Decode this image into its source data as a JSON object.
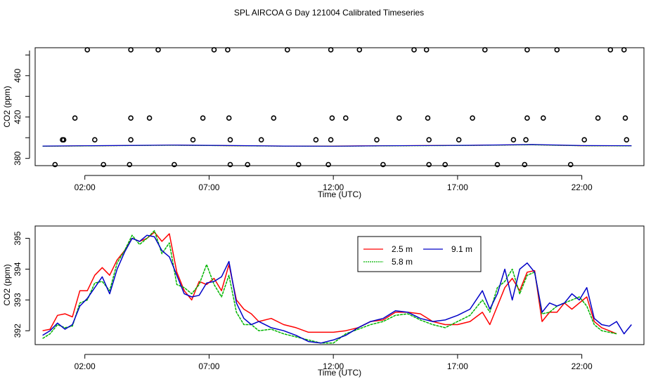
{
  "title": "SPL AIRCOA G  Day 121004  Calibrated Timeseries",
  "colors": {
    "s2_5": "#ff0000",
    "s5_8": "#00b400",
    "s9_1": "#0000c8",
    "markers": "#000000"
  },
  "chart_data": [
    {
      "type": "scatter",
      "title": "",
      "xlabel": "Time (UTC)",
      "ylabel": "CO2 (ppm)",
      "xlim": [
        0,
        24.5
      ],
      "ylim": [
        373,
        487
      ],
      "x_ticks": [
        2,
        7,
        12,
        17,
        22
      ],
      "x_tick_labels": [
        "02:00",
        "07:00",
        "12:00",
        "17:00",
        "22:00"
      ],
      "y_ticks": [
        380,
        420,
        460
      ],
      "y_tick_labels": [
        "380",
        "420",
        "460"
      ],
      "flat_series": [
        {
          "name": "2.5 m",
          "x": [
            0.3,
            4.0,
            5.5,
            8.0,
            10.0,
            12.0,
            14.0,
            17.5,
            19.0,
            20.0,
            22.0,
            24.0
          ],
          "y": [
            391.8,
            392.5,
            392.8,
            392.3,
            391.9,
            391.9,
            392.2,
            392.6,
            393.0,
            393.2,
            392.3,
            392.2
          ]
        },
        {
          "name": "5.8 m",
          "x": [
            0.3,
            4.0,
            5.5,
            8.0,
            10.0,
            12.0,
            14.0,
            17.5,
            19.0,
            20.0,
            22.0,
            24.0
          ],
          "y": [
            391.7,
            392.4,
            392.7,
            392.2,
            391.8,
            391.7,
            392.1,
            392.5,
            392.9,
            393.1,
            392.2,
            392.1
          ]
        },
        {
          "name": "9.1 m",
          "x": [
            0.3,
            4.0,
            5.5,
            8.0,
            10.0,
            12.0,
            14.0,
            17.5,
            19.0,
            20.0,
            22.0,
            24.0
          ],
          "y": [
            391.9,
            392.6,
            392.9,
            392.4,
            391.9,
            391.8,
            392.2,
            392.7,
            393.1,
            393.4,
            392.4,
            392.3
          ]
        }
      ],
      "markers": {
        "x": [
          1.15,
          2.1,
          0.8,
          3.85,
          4.95,
          7.2,
          7.75,
          10.15,
          11.9,
          13.05,
          15.25,
          15.75,
          18.1,
          19.8,
          21.0,
          23.15,
          23.7,
          1.6,
          3.85,
          4.6,
          6.75,
          7.8,
          9.6,
          11.95,
          12.5,
          14.65,
          15.8,
          17.6,
          19.8,
          20.45,
          22.65,
          23.75,
          1.1,
          2.4,
          3.85,
          6.35,
          7.85,
          9.1,
          11.3,
          11.9,
          13.75,
          15.85,
          17.05,
          19.25,
          19.75,
          22.1,
          23.8,
          2.75,
          3.8,
          5.6,
          7.85,
          8.55,
          10.6,
          11.8,
          14.0,
          15.85,
          16.5,
          18.6,
          19.7,
          21.55
        ],
        "y": [
          398,
          485,
          374,
          485,
          485,
          485,
          485,
          485,
          485,
          485,
          485,
          485,
          485,
          485,
          485,
          485,
          485,
          419,
          419,
          419,
          419,
          419,
          419,
          419,
          419,
          419,
          419,
          419,
          419,
          419,
          419,
          419,
          398,
          398,
          398,
          398,
          398,
          398,
          398,
          398,
          398,
          398,
          398,
          398,
          398,
          398,
          398,
          374,
          374,
          374,
          374,
          374,
          374,
          374,
          374,
          374,
          374,
          374,
          374,
          374
        ]
      }
    },
    {
      "type": "line",
      "title": "",
      "xlabel": "Time (UTC)",
      "ylabel": "CO2 (ppm)",
      "xlim": [
        0,
        24.5
      ],
      "ylim": [
        391.55,
        395.4
      ],
      "x_ticks": [
        2,
        7,
        12,
        17,
        22
      ],
      "x_tick_labels": [
        "02:00",
        "07:00",
        "12:00",
        "17:00",
        "22:00"
      ],
      "y_ticks": [
        392,
        393,
        394,
        395
      ],
      "y_tick_labels": [
        "392",
        "393",
        "394",
        "395"
      ],
      "legend": [
        "2.5 m",
        "5.8 m",
        "9.1 m"
      ],
      "legend_position": "top-right",
      "series": [
        {
          "name": "2.5 m",
          "x": [
            0.3,
            0.6,
            0.9,
            1.2,
            1.5,
            1.8,
            2.1,
            2.4,
            2.7,
            3.0,
            3.3,
            3.6,
            3.9,
            4.2,
            4.5,
            4.8,
            5.1,
            5.4,
            5.7,
            6.0,
            6.3,
            6.6,
            6.9,
            7.2,
            7.5,
            7.8,
            8.1,
            8.4,
            8.7,
            9.0,
            9.5,
            10.0,
            10.5,
            11.0,
            11.5,
            12.0,
            12.5,
            13.0,
            13.5,
            14.0,
            14.5,
            15.0,
            15.5,
            16.0,
            16.5,
            17.0,
            17.5,
            18.0,
            18.3,
            18.6,
            18.9,
            19.2,
            19.5,
            19.8,
            20.1,
            20.4,
            20.7,
            21.0,
            21.3,
            21.6,
            21.9,
            22.2,
            22.5,
            22.8,
            23.1,
            23.4
          ],
          "y": [
            392.0,
            392.05,
            392.5,
            392.55,
            392.45,
            393.3,
            393.3,
            393.8,
            394.05,
            393.8,
            394.3,
            394.6,
            395.0,
            394.9,
            395.0,
            395.2,
            394.9,
            395.15,
            393.9,
            393.3,
            393.0,
            393.6,
            393.5,
            393.7,
            393.3,
            394.15,
            393.0,
            392.7,
            392.55,
            392.3,
            392.4,
            392.2,
            392.1,
            391.95,
            391.95,
            391.95,
            392.0,
            392.1,
            392.3,
            392.35,
            392.6,
            392.6,
            392.55,
            392.3,
            392.2,
            392.2,
            392.3,
            392.6,
            392.2,
            392.8,
            393.4,
            393.7,
            393.3,
            393.9,
            393.95,
            392.3,
            392.6,
            392.6,
            392.9,
            392.7,
            392.9,
            393.1,
            392.3,
            392.1,
            392.0,
            391.9
          ]
        },
        {
          "name": "5.8 m",
          "x": [
            0.3,
            0.6,
            0.9,
            1.2,
            1.5,
            1.8,
            2.1,
            2.4,
            2.7,
            3.0,
            3.3,
            3.6,
            3.9,
            4.2,
            4.5,
            4.8,
            5.1,
            5.4,
            5.7,
            6.0,
            6.3,
            6.6,
            6.9,
            7.2,
            7.5,
            7.8,
            8.1,
            8.4,
            8.7,
            9.0,
            9.5,
            10.0,
            10.5,
            11.0,
            11.5,
            12.0,
            12.5,
            13.0,
            13.5,
            14.0,
            14.5,
            15.0,
            15.5,
            16.0,
            16.5,
            17.0,
            17.5,
            18.0,
            18.3,
            18.6,
            18.9,
            19.2,
            19.5,
            19.8,
            20.1,
            20.4,
            20.7,
            21.0,
            21.3,
            21.6,
            21.9,
            22.2,
            22.5,
            22.8,
            23.1,
            23.4
          ],
          "y": [
            391.75,
            391.9,
            392.2,
            392.1,
            392.15,
            392.9,
            393.0,
            393.55,
            393.6,
            393.3,
            394.2,
            394.6,
            395.1,
            394.8,
            395.0,
            395.25,
            394.5,
            394.85,
            393.5,
            393.4,
            393.2,
            393.5,
            394.15,
            393.5,
            393.1,
            393.8,
            392.6,
            392.2,
            392.2,
            392.0,
            392.05,
            391.9,
            391.8,
            391.7,
            391.6,
            391.6,
            391.9,
            392.05,
            392.2,
            392.3,
            392.5,
            392.55,
            392.35,
            392.2,
            392.1,
            392.3,
            392.5,
            393.0,
            392.6,
            393.4,
            393.6,
            394.0,
            393.2,
            393.8,
            393.9,
            392.55,
            392.6,
            392.8,
            392.9,
            393.0,
            393.1,
            392.8,
            392.2,
            392.0,
            391.95,
            391.9
          ]
        },
        {
          "name": "9.1 m",
          "x": [
            0.3,
            0.6,
            0.9,
            1.2,
            1.5,
            1.8,
            2.1,
            2.4,
            2.7,
            3.0,
            3.3,
            3.6,
            3.9,
            4.2,
            4.5,
            4.8,
            5.1,
            5.4,
            5.7,
            6.0,
            6.3,
            6.6,
            6.9,
            7.2,
            7.5,
            7.8,
            8.1,
            8.4,
            8.7,
            9.0,
            9.5,
            10.0,
            10.5,
            11.0,
            11.5,
            12.0,
            12.5,
            13.0,
            13.5,
            14.0,
            14.5,
            15.0,
            15.5,
            16.0,
            16.5,
            17.0,
            17.5,
            18.0,
            18.3,
            18.6,
            18.9,
            19.2,
            19.5,
            19.8,
            20.1,
            20.4,
            20.7,
            21.0,
            21.3,
            21.6,
            21.9,
            22.2,
            22.5,
            22.8,
            23.1,
            23.4,
            23.7,
            24.0
          ],
          "y": [
            391.85,
            392.0,
            392.25,
            392.05,
            392.2,
            392.8,
            393.05,
            393.4,
            393.75,
            393.2,
            394.0,
            394.55,
            395.0,
            394.9,
            395.1,
            395.05,
            394.6,
            394.4,
            393.8,
            393.2,
            393.1,
            393.15,
            393.55,
            393.6,
            393.75,
            394.25,
            392.9,
            392.4,
            392.2,
            392.3,
            392.1,
            392.0,
            391.85,
            391.65,
            391.6,
            391.7,
            391.85,
            392.1,
            392.3,
            392.4,
            392.65,
            392.6,
            392.4,
            392.3,
            392.35,
            392.5,
            392.7,
            393.3,
            392.7,
            393.2,
            394.0,
            393.0,
            394.0,
            394.2,
            393.9,
            392.6,
            392.9,
            392.8,
            392.9,
            393.2,
            393.0,
            393.4,
            392.4,
            392.2,
            392.15,
            392.3,
            391.9,
            392.2
          ]
        }
      ]
    }
  ]
}
